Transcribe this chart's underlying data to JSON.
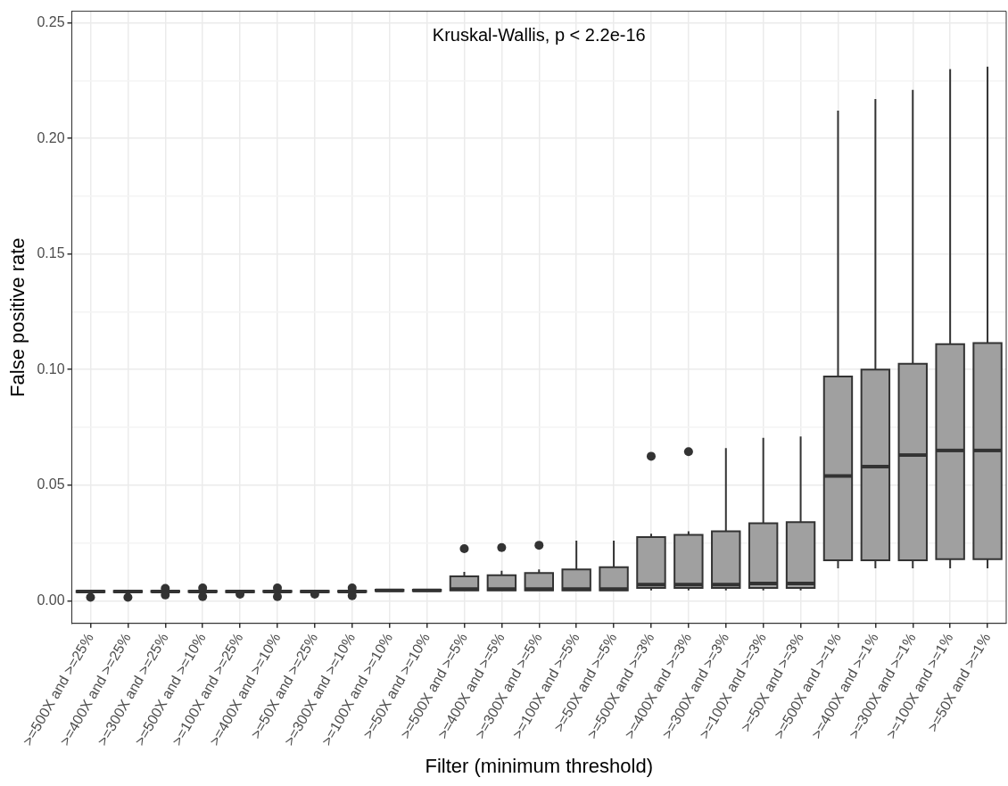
{
  "chart_data": {
    "type": "box",
    "xlabel": "Filter (minimum threshold)",
    "ylabel": "False positive rate",
    "annotations": [
      "Kruskal-Wallis, p < 2.2e-16"
    ],
    "categories": [
      ">=500X and >=25%",
      ">=400X and >=25%",
      ">=300X and >=25%",
      ">=500X and >=10%",
      ">=100X and >=25%",
      ">=400X and >=10%",
      ">=50X and >=25%",
      ">=300X and >=10%",
      ">=100X and >=10%",
      ">=50X and >=10%",
      ">=500X and >=5%",
      ">=400X and >=5%",
      ">=300X and >=5%",
      ">=100X and >=5%",
      ">=50X and >=5%",
      ">=500X and >=3%",
      ">=400X and >=3%",
      ">=300X and >=3%",
      ">=100X and >=3%",
      ">=50X and >=3%",
      ">=500X and >=1%",
      ">=400X and >=1%",
      ">=300X and >=1%",
      ">=100X and >=1%",
      ">=50X and >=1%"
    ],
    "color": "#a0a0a0",
    "boxes": [
      {
        "low": 0.0035,
        "q1": 0.0037,
        "median": 0.004,
        "q3": 0.0043,
        "high": 0.0045,
        "outliers": [
          0.0015
        ]
      },
      {
        "low": 0.0035,
        "q1": 0.0037,
        "median": 0.004,
        "q3": 0.0043,
        "high": 0.0045,
        "outliers": [
          0.0015
        ]
      },
      {
        "low": 0.0035,
        "q1": 0.0038,
        "median": 0.004,
        "q3": 0.0043,
        "high": 0.0045,
        "outliers": [
          0.0053,
          0.0025
        ]
      },
      {
        "low": 0.0035,
        "q1": 0.0038,
        "median": 0.004,
        "q3": 0.0043,
        "high": 0.0045,
        "outliers": [
          0.0055,
          0.0018
        ]
      },
      {
        "low": 0.0035,
        "q1": 0.0037,
        "median": 0.004,
        "q3": 0.0043,
        "high": 0.0045,
        "outliers": [
          0.0028
        ]
      },
      {
        "low": 0.0035,
        "q1": 0.0038,
        "median": 0.004,
        "q3": 0.0043,
        "high": 0.0045,
        "outliers": [
          0.0055,
          0.0018
        ]
      },
      {
        "low": 0.0035,
        "q1": 0.0037,
        "median": 0.004,
        "q3": 0.0043,
        "high": 0.0045,
        "outliers": [
          0.0028
        ]
      },
      {
        "low": 0.0035,
        "q1": 0.0038,
        "median": 0.004,
        "q3": 0.0043,
        "high": 0.0045,
        "outliers": [
          0.0055,
          0.0022
        ]
      },
      {
        "low": 0.004,
        "q1": 0.0042,
        "median": 0.0045,
        "q3": 0.0048,
        "high": 0.005
      },
      {
        "low": 0.004,
        "q1": 0.0042,
        "median": 0.0045,
        "q3": 0.0048,
        "high": 0.005
      },
      {
        "low": 0.0045,
        "q1": 0.0045,
        "median": 0.005,
        "q3": 0.0105,
        "high": 0.0125,
        "outliers": [
          0.0225
        ]
      },
      {
        "low": 0.0045,
        "q1": 0.0045,
        "median": 0.005,
        "q3": 0.011,
        "high": 0.013,
        "outliers": [
          0.023
        ]
      },
      {
        "low": 0.0045,
        "q1": 0.0045,
        "median": 0.005,
        "q3": 0.012,
        "high": 0.0135,
        "outliers": [
          0.024
        ]
      },
      {
        "low": 0.0045,
        "q1": 0.0045,
        "median": 0.005,
        "q3": 0.0135,
        "high": 0.026
      },
      {
        "low": 0.0045,
        "q1": 0.0045,
        "median": 0.005,
        "q3": 0.0145,
        "high": 0.026
      },
      {
        "low": 0.0045,
        "q1": 0.0055,
        "median": 0.007,
        "q3": 0.0275,
        "high": 0.029,
        "outliers": [
          0.0625
        ]
      },
      {
        "low": 0.0045,
        "q1": 0.0055,
        "median": 0.007,
        "q3": 0.0285,
        "high": 0.03,
        "outliers": [
          0.0645
        ]
      },
      {
        "low": 0.0045,
        "q1": 0.0055,
        "median": 0.007,
        "q3": 0.03,
        "high": 0.066
      },
      {
        "low": 0.0045,
        "q1": 0.0055,
        "median": 0.0075,
        "q3": 0.0335,
        "high": 0.0705
      },
      {
        "low": 0.0045,
        "q1": 0.0055,
        "median": 0.0075,
        "q3": 0.034,
        "high": 0.071
      },
      {
        "low": 0.014,
        "q1": 0.0175,
        "median": 0.054,
        "q3": 0.097,
        "high": 0.212
      },
      {
        "low": 0.014,
        "q1": 0.0175,
        "median": 0.058,
        "q3": 0.1,
        "high": 0.217
      },
      {
        "low": 0.014,
        "q1": 0.0175,
        "median": 0.063,
        "q3": 0.1025,
        "high": 0.221
      },
      {
        "low": 0.014,
        "q1": 0.018,
        "median": 0.065,
        "q3": 0.111,
        "high": 0.23
      },
      {
        "low": 0.014,
        "q1": 0.018,
        "median": 0.065,
        "q3": 0.1115,
        "high": 0.231
      }
    ],
    "ylim": [
      -0.0098,
      0.255
    ],
    "yticks": [
      {
        "value": 0,
        "label": "0.00"
      },
      {
        "value": 0.025,
        "label": null
      },
      {
        "value": 0.05,
        "label": "0.05"
      },
      {
        "value": 0.075,
        "label": null
      },
      {
        "value": 0.1,
        "label": "0.10"
      },
      {
        "value": 0.125,
        "label": null
      },
      {
        "value": 0.15,
        "label": "0.15"
      },
      {
        "value": 0.175,
        "label": null
      },
      {
        "value": 0.2,
        "label": "0.20"
      },
      {
        "value": 0.225,
        "label": null
      },
      {
        "value": 0.25,
        "label": "0.25"
      }
    ],
    "grid": true,
    "legend": false
  }
}
